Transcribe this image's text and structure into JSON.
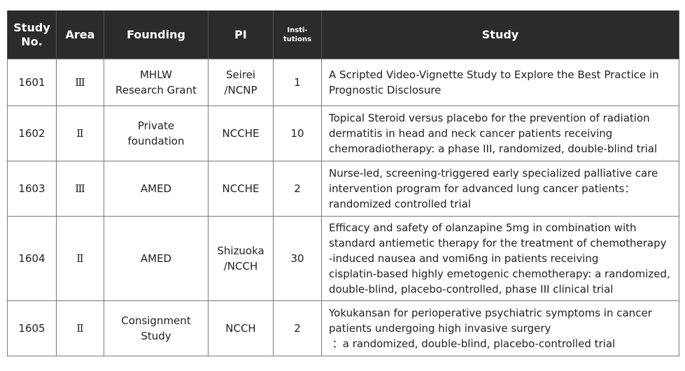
{
  "headers": {
    "study_no": [
      "Study",
      "No."
    ],
    "area": "Area",
    "founding": "Founding",
    "pi": "PI",
    "institutions": [
      "Insti-",
      "tutions"
    ],
    "study": "Study"
  },
  "rows": [
    {
      "study_no": "1601",
      "area": "Ⅲ",
      "founding": [
        "MHLW",
        "Research Grant"
      ],
      "pi": [
        "Seirei",
        "/NCNP"
      ],
      "institutions": "1",
      "study": [
        "A Scripted Video-Vignette Study to Explore the Best Practice in",
        "Prognostic Disclosure"
      ]
    },
    {
      "study_no": "1602",
      "area": "Ⅱ",
      "founding": [
        "Private",
        "foundation"
      ],
      "pi": [
        "NCCHE"
      ],
      "institutions": "10",
      "study": [
        "Topical Steroid versus placebo for the prevention of radiation",
        "dermatitis in head and neck cancer patients receiving",
        "chemoradiotherapy: a phase III, randomized, double-blind trial"
      ]
    },
    {
      "study_no": "1603",
      "area": "Ⅲ",
      "founding": [
        "AMED"
      ],
      "pi": [
        "NCCHE"
      ],
      "institutions": "2",
      "study": [
        "Nurse-led, screening-triggered early specialized palliative care",
        "intervention program for advanced lung cancer patients：",
        "randomized controlled trial"
      ]
    },
    {
      "study_no": "1604",
      "area": "Ⅱ",
      "founding": [
        "AMED"
      ],
      "pi": [
        "Shizuoka",
        "/NCCH"
      ],
      "institutions": "30",
      "study": [
        "Efficacy and safety of olanzapine 5mg in combination with",
        "standard antiemetic therapy for the treatment of chemotherapy",
        "-induced nausea and vomi6ng in patients receiving",
        "cisplatin-based highly emetogenic chemotherapy: a randomized,",
        "double-blind, placebo-controlled, phase III clinical trial"
      ]
    },
    {
      "study_no": "1605",
      "area": "Ⅱ",
      "founding": [
        "Consignment",
        "Study"
      ],
      "pi": [
        "NCCH"
      ],
      "institutions": "2",
      "study": [
        "Yokukansan for perioperative psychiatric symptoms in cancer",
        "patients undergoing high invasive surgery",
        " ：a randomized, double-blind, placebo-controlled trial"
      ]
    }
  ]
}
